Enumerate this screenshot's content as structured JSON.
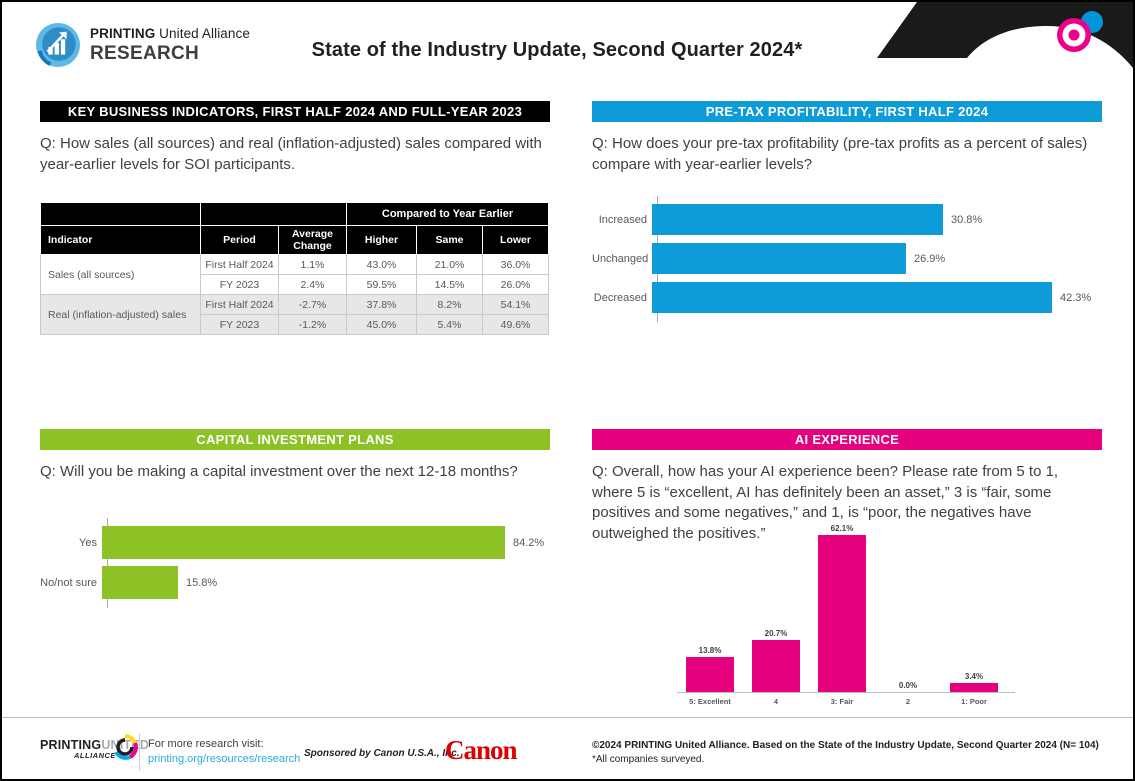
{
  "colors": {
    "blue": "#0E9CD8",
    "green": "#8CC226",
    "pink": "#E5007E",
    "link": "#29ABE2",
    "canonred": "#DD0000"
  },
  "header": {
    "logo_brand_bold": "PRINTING",
    "logo_brand_rest": " United Alliance",
    "logo_research": "RESEARCH",
    "title": "State of the Industry Update, Second Quarter 2024*"
  },
  "panels": {
    "key_business_indicators": {
      "header": "KEY BUSINESS INDICATORS, FIRST HALF 2024 AND FULL-YEAR 2023",
      "question": "Q: How sales (all sources) and real (inflation-adjusted) sales compared with year-earlier levels for SOI participants.",
      "table": {
        "group_header": "Compared to Year Earlier",
        "columns": [
          "Indicator",
          "Period",
          "Average Change",
          "Higher",
          "Same",
          "Lower"
        ],
        "rows": [
          [
            "Sales (all sources)",
            "First Half 2024",
            "1.1%",
            "43.0%",
            "21.0%",
            "36.0%"
          ],
          [
            "",
            "FY 2023",
            "2.4%",
            "59.5%",
            "14.5%",
            "26.0%"
          ],
          [
            "Real (inflation-adjusted) sales",
            "First Half 2024",
            "-2.7%",
            "37.8%",
            "8.2%",
            "54.1%"
          ],
          [
            "",
            "FY 2023",
            "-1.2%",
            "45.0%",
            "5.4%",
            "49.6%"
          ]
        ]
      }
    },
    "pretax_profitability": {
      "header": "PRE-TAX PROFITABILITY, FIRST HALF 2024",
      "question": "Q: How does your pre-tax profitability (pre-tax profits as a percent of sales) compare with year-earlier levels?"
    },
    "capital_investment": {
      "header": "CAPITAL INVESTMENT PLANS",
      "question": "Q: Will you be making a capital investment over the next 12-18 months?"
    },
    "ai_experience": {
      "header": "AI EXPERIENCE",
      "question": "Q: Overall, how has your AI experience been? Please rate from 5 to 1, where 5 is “excellent, AI has definitely been an asset,” 3 is “fair, some positives and some negatives,” and 1, is “poor, the negatives have outweighed the positives.”"
    }
  },
  "chart_data": [
    {
      "id": "pretax_profitability",
      "type": "bar",
      "orientation": "horizontal",
      "title": "PRE-TAX PROFITABILITY, FIRST HALF 2024",
      "categories": [
        "Increased",
        "Unchanged",
        "Decreased"
      ],
      "values": [
        30.8,
        26.9,
        42.3
      ],
      "value_labels": [
        "30.8%",
        "26.9%",
        "42.3%"
      ],
      "color": "#0E9CD8",
      "xlim": [
        0,
        45
      ],
      "grid": false,
      "legend": "none"
    },
    {
      "id": "capital_investment",
      "type": "bar",
      "orientation": "horizontal",
      "title": "CAPITAL INVESTMENT PLANS",
      "categories": [
        "Yes",
        "No/not sure"
      ],
      "values": [
        84.2,
        15.8
      ],
      "value_labels": [
        "84.2%",
        "15.8%"
      ],
      "color": "#8CC226",
      "xlim": [
        0,
        90
      ],
      "grid": false,
      "legend": "none"
    },
    {
      "id": "ai_experience",
      "type": "bar",
      "orientation": "vertical",
      "title": "AI EXPERIENCE",
      "categories": [
        "5: Excellent",
        "4",
        "3: Fair",
        "2",
        "1: Poor"
      ],
      "values": [
        13.8,
        20.7,
        62.1,
        0.0,
        3.4
      ],
      "value_labels": [
        "13.8%",
        "20.7%",
        "62.1%",
        "0.0%",
        "3.4%"
      ],
      "color": "#E5007E",
      "ylim": [
        0,
        65
      ],
      "grid": false,
      "legend": "none"
    },
    {
      "id": "key_business_indicators",
      "type": "table",
      "title": "KEY BUSINESS INDICATORS, FIRST HALF 2024 AND FULL-YEAR 2023",
      "columns": [
        "Indicator",
        "Period",
        "Average Change",
        "Higher (vs year earlier)",
        "Same (vs year earlier)",
        "Lower (vs year earlier)"
      ],
      "rows": [
        [
          "Sales (all sources)",
          "First Half 2024",
          "1.1%",
          "43.0%",
          "21.0%",
          "36.0%"
        ],
        [
          "Sales (all sources)",
          "FY 2023",
          "2.4%",
          "59.5%",
          "14.5%",
          "26.0%"
        ],
        [
          "Real (inflation-adjusted) sales",
          "First Half 2024",
          "-2.7%",
          "37.8%",
          "8.2%",
          "54.1%"
        ],
        [
          "Real (inflation-adjusted) sales",
          "FY 2023",
          "-1.2%",
          "45.0%",
          "5.4%",
          "49.6%"
        ]
      ]
    }
  ],
  "footer": {
    "logo_printing": "PRINTING",
    "logo_united": "UNITED",
    "logo_alliance": "ALLIANCE",
    "visit_label": "For more research visit:",
    "visit_link": "printing.org/resources/research",
    "sponsor": "Sponsored by Canon U.S.A., Inc.",
    "canon_logo_text": "Canon",
    "copyright": "©2024 PRINTING United Alliance. Based on the State of the Industry Update, Second Quarter 2024 (N= 104)",
    "note": "*All companies surveyed."
  }
}
